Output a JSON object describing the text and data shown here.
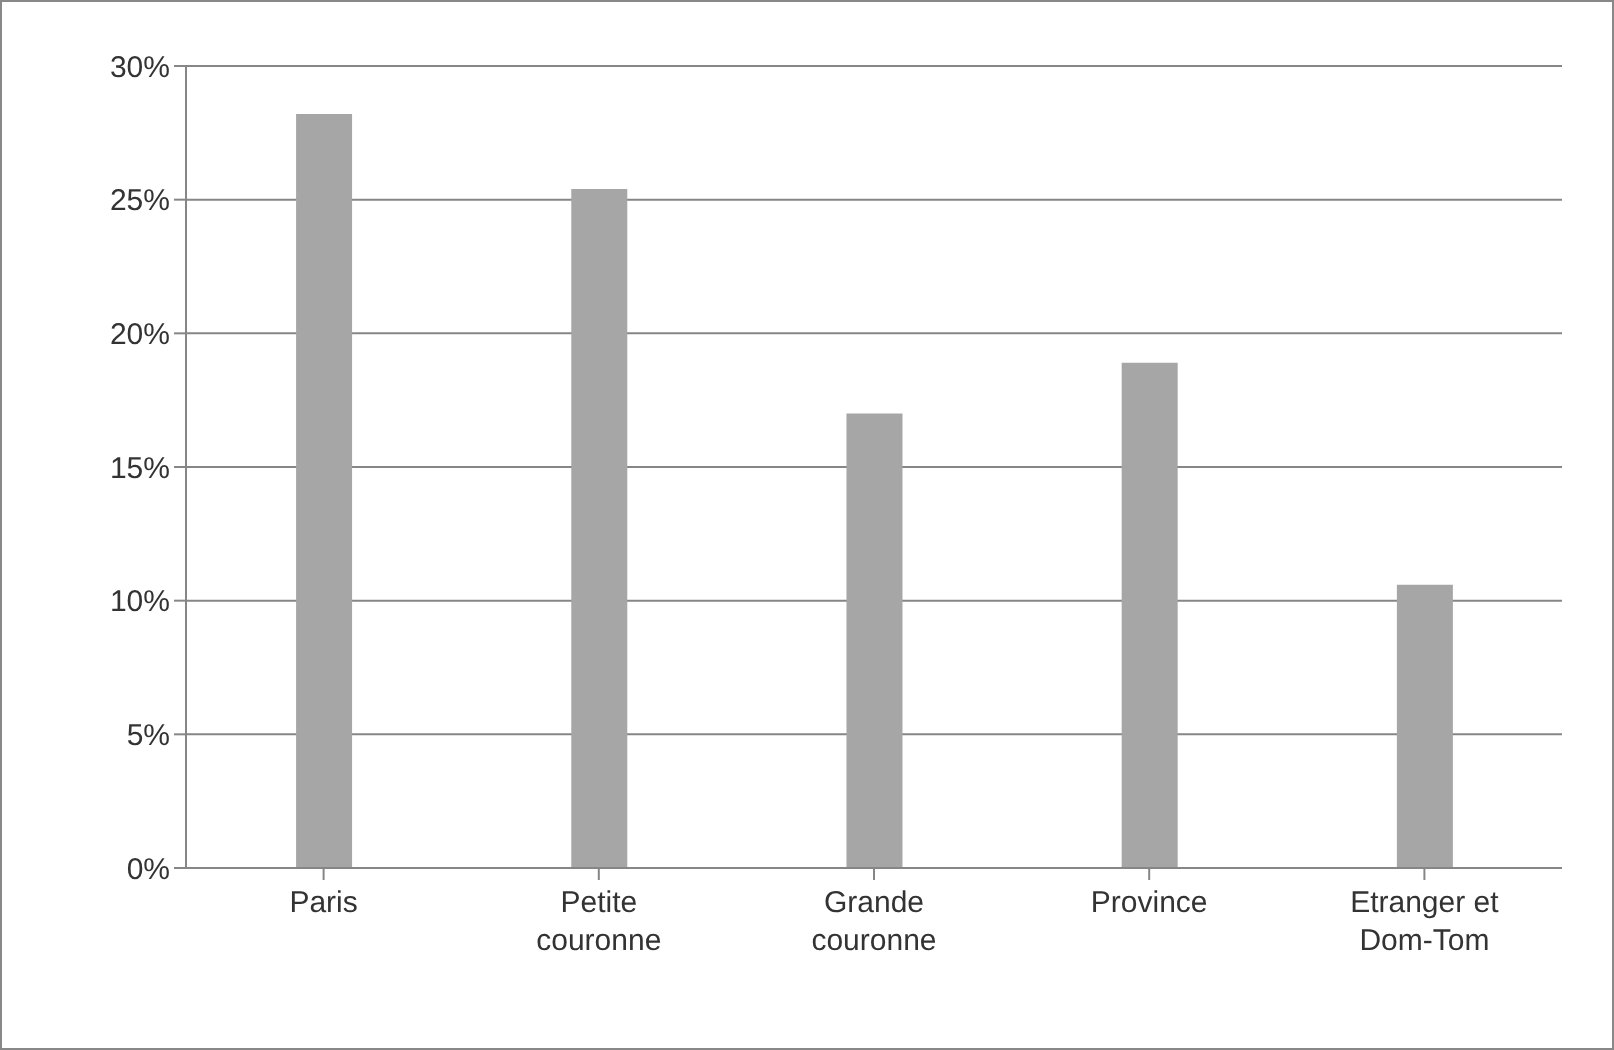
{
  "chart_data": {
    "type": "bar",
    "categories": [
      "Paris",
      "Petite couronne",
      "Grande couronne",
      "Province",
      "Etranger et Dom-Tom"
    ],
    "values": [
      28.2,
      25.4,
      17.0,
      18.9,
      10.6
    ],
    "color": "#a6a6a6",
    "ylim": [
      0,
      30
    ],
    "yticks": [
      {
        "value": 0,
        "label": "0%"
      },
      {
        "value": 5,
        "label": "5%"
      },
      {
        "value": 10,
        "label": "10%"
      },
      {
        "value": 15,
        "label": "15%"
      },
      {
        "value": 20,
        "label": "20%"
      },
      {
        "value": 25,
        "label": "25%"
      },
      {
        "value": 30,
        "label": "30%"
      }
    ],
    "grid": "y",
    "legend": false
  }
}
